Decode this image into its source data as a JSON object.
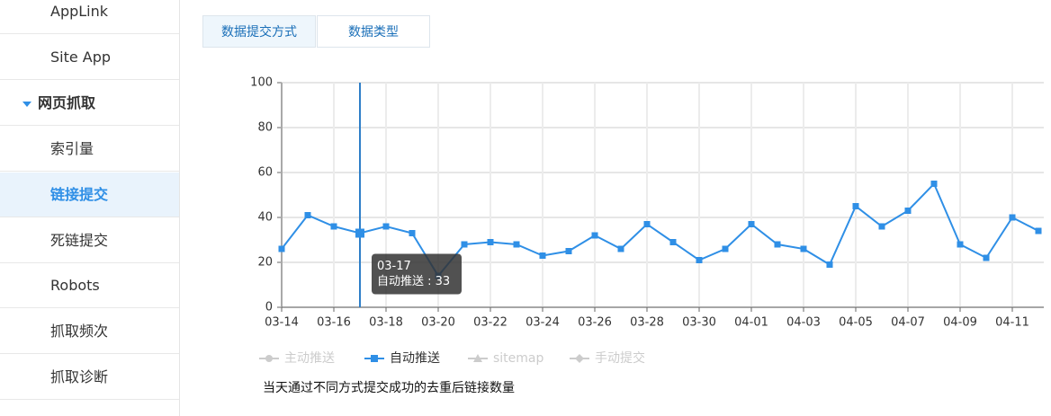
{
  "sidebar": {
    "items": [
      "AppLink",
      "Site App",
      "网页抓取",
      "索引量",
      "链接提交",
      "死链提交",
      "Robots",
      "抓取频次",
      "抓取诊断"
    ],
    "group_index": 2,
    "active_index": 4
  },
  "tabs": {
    "items": [
      "数据提交方式",
      "数据类型"
    ],
    "active_index": 0
  },
  "chart_data": {
    "type": "line",
    "categories": [
      "03-14",
      null,
      "03-16",
      null,
      "03-18",
      null,
      "03-20",
      null,
      "03-22",
      null,
      "03-24",
      null,
      "03-26",
      null,
      "03-28",
      null,
      "03-30",
      null,
      "04-01",
      null,
      "04-03",
      null,
      "04-05",
      null,
      "04-07",
      null,
      "04-09",
      null,
      "04-11",
      null
    ],
    "series": [
      {
        "name": "主动推送",
        "color": "#cccccc",
        "marker": "circle",
        "visible": false
      },
      {
        "name": "自动推送",
        "color": "#2f8fe6",
        "marker": "square",
        "visible": true,
        "values": [
          26,
          41,
          36,
          33,
          36,
          33,
          14,
          28,
          29,
          28,
          23,
          25,
          32,
          26,
          37,
          29,
          21,
          26,
          37,
          28,
          26,
          19,
          45,
          36,
          43,
          55,
          28,
          22,
          40,
          34
        ]
      },
      {
        "name": "sitemap",
        "color": "#cccccc",
        "marker": "triangle",
        "visible": false
      },
      {
        "name": "手动提交",
        "color": "#cccccc",
        "marker": "diamond",
        "visible": false
      }
    ],
    "ylim": [
      0,
      100
    ],
    "yticks": [
      0,
      20,
      40,
      60,
      80,
      100
    ],
    "grid": true,
    "tooltip": {
      "index": 3,
      "title": "03-17",
      "text": "自动推送 : 33"
    },
    "caption": "当天通过不同方式提交成功的去重后链接数量"
  }
}
